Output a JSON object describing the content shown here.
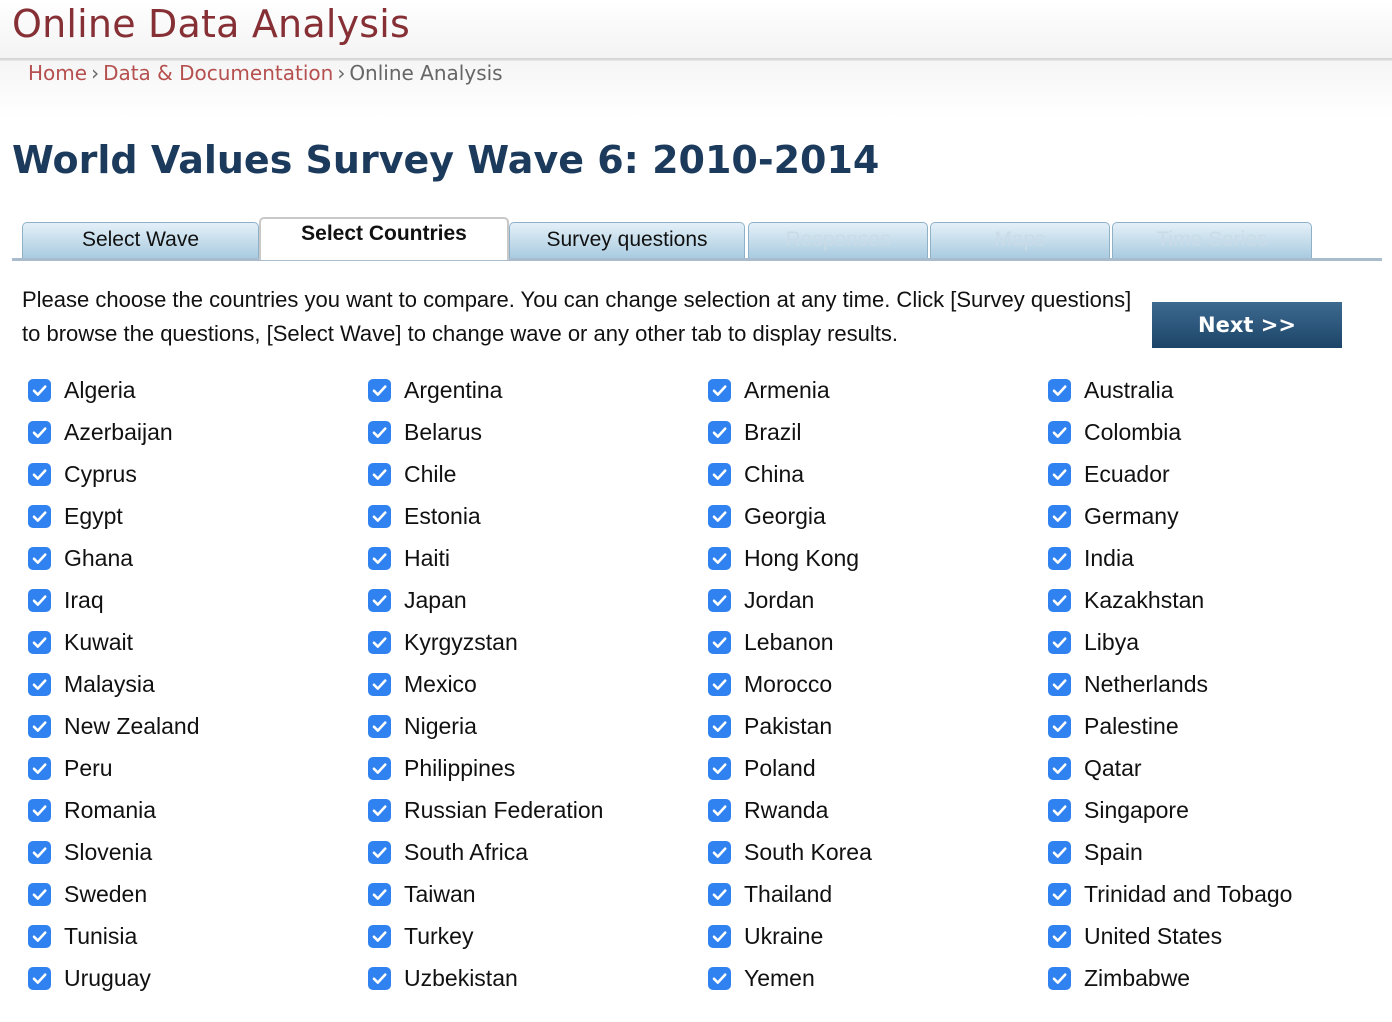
{
  "header": {
    "site_title": "Online Data Analysis",
    "breadcrumb": {
      "home": "Home",
      "data_docs": "Data & Documentation",
      "current": "Online Analysis",
      "separator": "›"
    }
  },
  "page_title": "World Values Survey Wave 6: 2010-2014",
  "tabs": [
    {
      "label": "Select Wave",
      "state": "normal"
    },
    {
      "label": "Select Countries",
      "state": "active"
    },
    {
      "label": "Survey questions",
      "state": "normal"
    },
    {
      "label": "Responses",
      "state": "disabled"
    },
    {
      "label": "Maps",
      "state": "disabled"
    },
    {
      "label": "Time Series",
      "state": "disabled"
    }
  ],
  "instructions": "Please choose the countries you want to compare. You can change selection at any time. Click [Survey questions] to browse the questions, [Select Wave] to change wave or any other tab to display results.",
  "next_button": "Next >>",
  "colors": {
    "site_title": "#863036",
    "page_title": "#1c3a5c",
    "checkbox": "#2f82f0",
    "next_button": "#1c4468"
  },
  "countries": [
    [
      "Algeria",
      "Argentina",
      "Armenia",
      "Australia"
    ],
    [
      "Azerbaijan",
      "Belarus",
      "Brazil",
      "Colombia"
    ],
    [
      "Cyprus",
      "Chile",
      "China",
      "Ecuador"
    ],
    [
      "Egypt",
      "Estonia",
      "Georgia",
      "Germany"
    ],
    [
      "Ghana",
      "Haiti",
      "Hong Kong",
      "India"
    ],
    [
      "Iraq",
      "Japan",
      "Jordan",
      "Kazakhstan"
    ],
    [
      "Kuwait",
      "Kyrgyzstan",
      "Lebanon",
      "Libya"
    ],
    [
      "Malaysia",
      "Mexico",
      "Morocco",
      "Netherlands"
    ],
    [
      "New Zealand",
      "Nigeria",
      "Pakistan",
      "Palestine"
    ],
    [
      "Peru",
      "Philippines",
      "Poland",
      "Qatar"
    ],
    [
      "Romania",
      "Russian Federation",
      "Rwanda",
      "Singapore"
    ],
    [
      "Slovenia",
      "South Africa",
      "South Korea",
      "Spain"
    ],
    [
      "Sweden",
      "Taiwan",
      "Thailand",
      "Trinidad and Tobago"
    ],
    [
      "Tunisia",
      "Turkey",
      "Ukraine",
      "United States"
    ],
    [
      "Uruguay",
      "Uzbekistan",
      "Yemen",
      "Zimbabwe"
    ]
  ],
  "all_checked": true
}
